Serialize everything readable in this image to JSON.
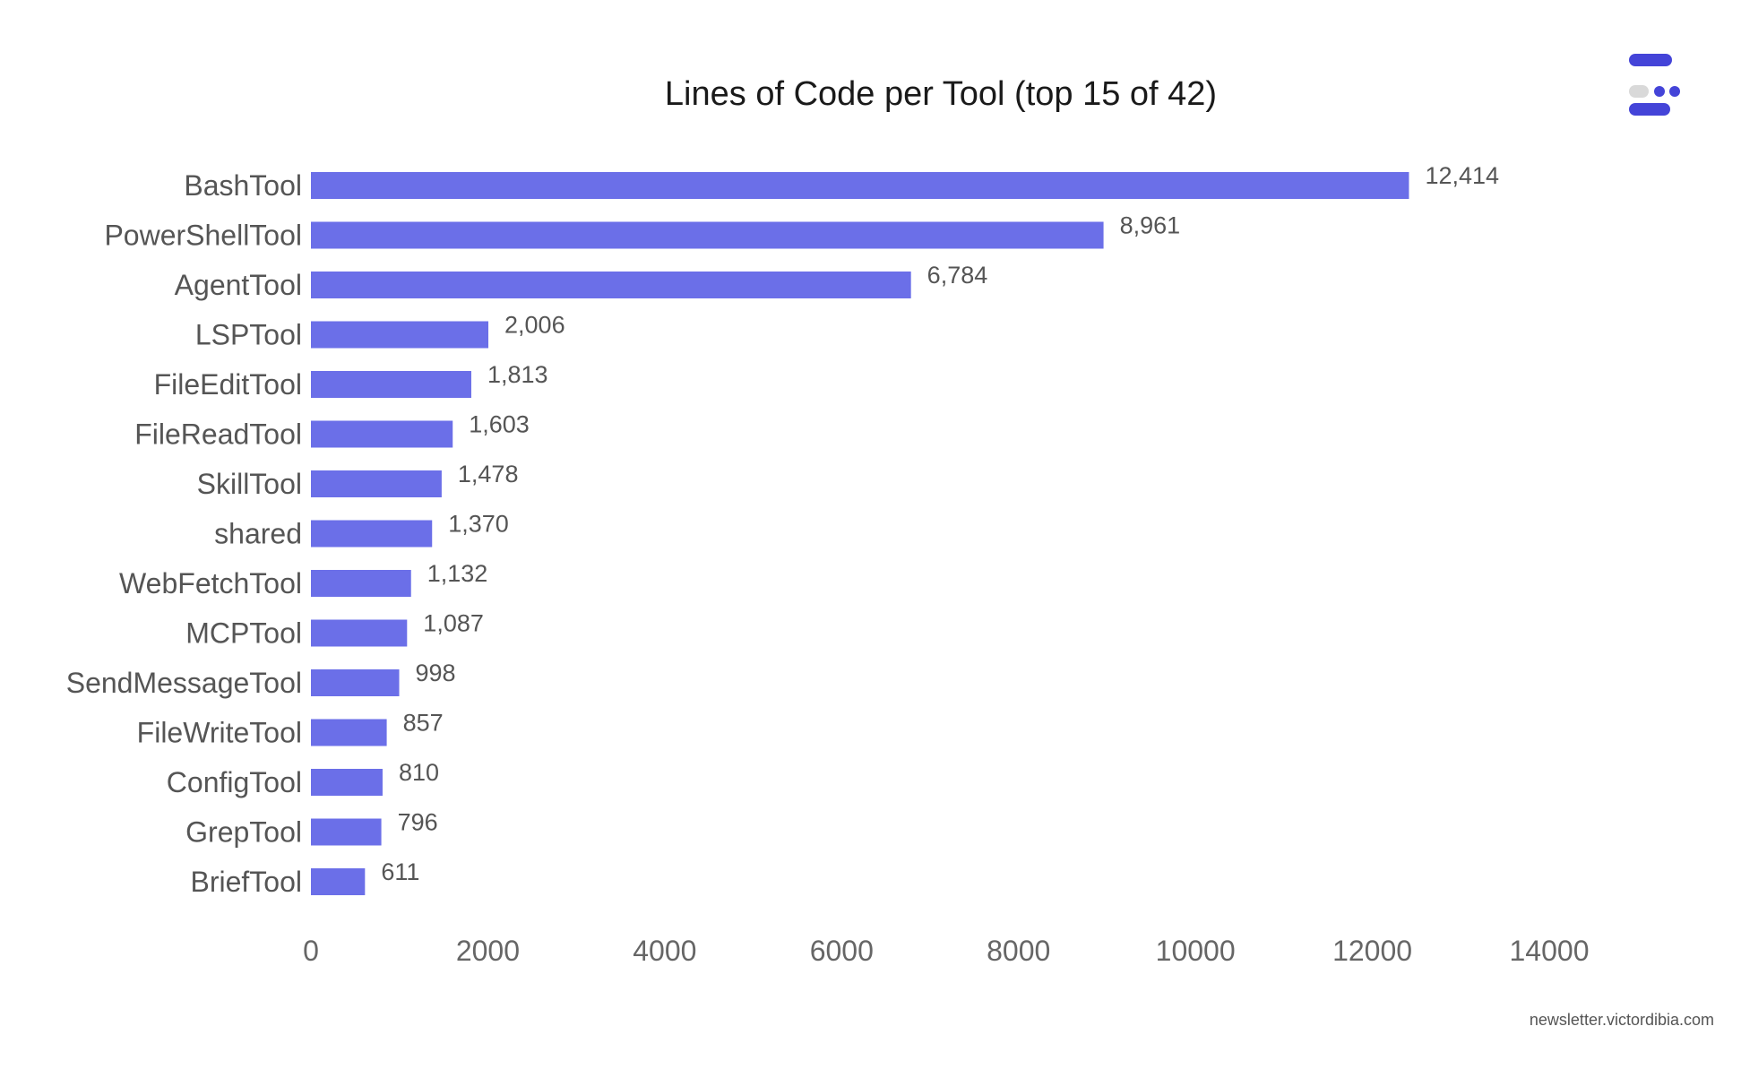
{
  "colors": {
    "bar": "#6b6fe8",
    "logo_primary": "#4444d8",
    "logo_secondary": "#d9d9d9"
  },
  "footer": {
    "text": "newsletter.victordibia.com"
  },
  "chart_data": {
    "type": "bar",
    "orientation": "horizontal",
    "title": "Lines of Code per Tool (top 15 of 42)",
    "xlabel": "",
    "ylabel": "",
    "xlim": [
      0,
      14000
    ],
    "ticks": [
      0,
      2000,
      4000,
      6000,
      8000,
      10000,
      12000,
      14000
    ],
    "grid": false,
    "categories": [
      "BashTool",
      "PowerShellTool",
      "AgentTool",
      "LSPTool",
      "FileEditTool",
      "FileReadTool",
      "SkillTool",
      "shared",
      "WebFetchTool",
      "MCPTool",
      "SendMessageTool",
      "FileWriteTool",
      "ConfigTool",
      "GrepTool",
      "BriefTool"
    ],
    "values": [
      12414,
      8961,
      6784,
      2006,
      1813,
      1603,
      1478,
      1370,
      1132,
      1087,
      998,
      857,
      810,
      796,
      611
    ],
    "value_labels": [
      "12,414",
      "8,961",
      "6,784",
      "2,006",
      "1,813",
      "1,603",
      "1,478",
      "1,370",
      "1,132",
      "1,087",
      "998",
      "857",
      "810",
      "796",
      "611"
    ]
  }
}
